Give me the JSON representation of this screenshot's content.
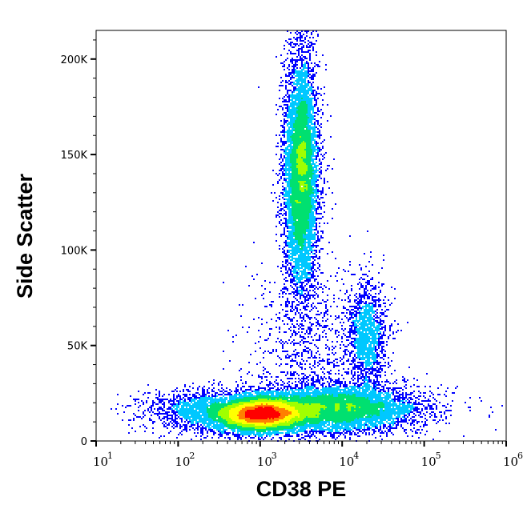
{
  "chart_data": {
    "type": "heatmap",
    "subtype": "flow-cytometry density dot plot",
    "xlabel": "CD38 PE",
    "ylabel": "Side Scatter",
    "x_scale": "log",
    "xlim": [
      10,
      1000000
    ],
    "ylim": [
      0,
      215000
    ],
    "x_ticks": [
      {
        "value": 10,
        "base": "10",
        "exp": "1"
      },
      {
        "value": 100,
        "base": "10",
        "exp": "2"
      },
      {
        "value": 1000,
        "base": "10",
        "exp": "3"
      },
      {
        "value": 10000,
        "base": "10",
        "exp": "4"
      },
      {
        "value": 100000,
        "base": "10",
        "exp": "5"
      },
      {
        "value": 1000000,
        "base": "10",
        "exp": "6"
      }
    ],
    "y_ticks": [
      {
        "value": 0,
        "label": "0"
      },
      {
        "value": 50000,
        "label": "50K"
      },
      {
        "value": 100000,
        "label": "100K"
      },
      {
        "value": 150000,
        "label": "150K"
      },
      {
        "value": 200000,
        "label": "200K"
      }
    ],
    "grid": false,
    "colormap": [
      "#0000ff",
      "#00c8ff",
      "#00e070",
      "#a0ff00",
      "#ffff00",
      "#ff8000",
      "#ff0000"
    ],
    "populations": [
      {
        "log10_x_center": 3.0,
        "log10_x_sd": 0.28,
        "y_center": 14000,
        "y_sd": 4500,
        "weight": 9000
      },
      {
        "log10_x_center": 3.9,
        "log10_x_sd": 0.5,
        "y_center": 17000,
        "y_sd": 6000,
        "weight": 7000
      },
      {
        "log10_x_center": 2.3,
        "log10_x_sd": 0.35,
        "y_center": 16000,
        "y_sd": 5500,
        "weight": 1500
      },
      {
        "log10_x_center": 3.5,
        "log10_x_sd": 0.1,
        "y_center": 140000,
        "y_sd": 30000,
        "weight": 8000
      },
      {
        "log10_x_center": 4.3,
        "log10_x_sd": 0.12,
        "y_center": 55000,
        "y_sd": 14000,
        "weight": 1500
      },
      {
        "log10_x_center": 3.6,
        "log10_x_sd": 0.35,
        "y_center": 45000,
        "y_sd": 25000,
        "weight": 1000
      }
    ]
  }
}
